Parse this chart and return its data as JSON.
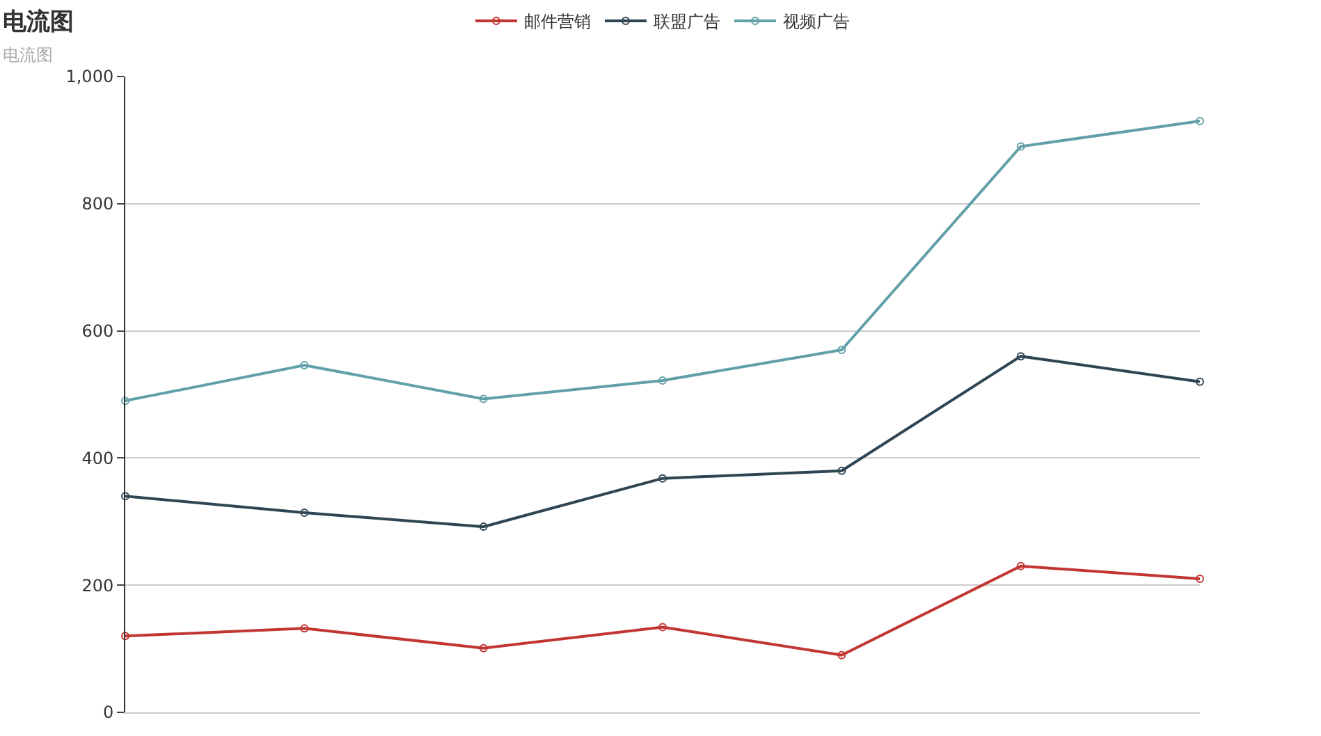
{
  "chart_data": {
    "type": "line",
    "title": "电流图",
    "subtitle": "电流图",
    "categories": [
      null,
      null,
      null,
      null,
      null,
      null,
      null
    ],
    "series": [
      {
        "name": "邮件营销",
        "color": "#c23531",
        "values": [
          120,
          132,
          101,
          134,
          90,
          230,
          210
        ]
      },
      {
        "name": "联盟广告",
        "color": "#2f4554",
        "values": [
          340,
          314,
          292,
          368,
          380,
          560,
          520
        ]
      },
      {
        "name": "视频广告",
        "color": "#61a0a8",
        "values": [
          490,
          546,
          493,
          522,
          570,
          890,
          930
        ]
      }
    ],
    "ylim": [
      0,
      1000
    ],
    "yticks": [
      0,
      200,
      400,
      600,
      800,
      {
        "value": 1000,
        "label": "1,000"
      }
    ],
    "grid": "y",
    "legend": "top",
    "marker": "circle",
    "line_style": "solid"
  }
}
